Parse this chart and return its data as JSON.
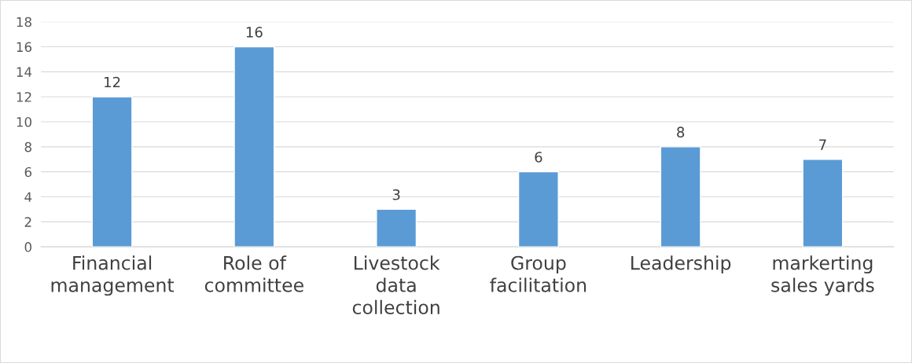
{
  "chart_data": {
    "type": "bar",
    "categories": [
      "Financial\nmanagement",
      "Role of\ncommittee",
      "Livestock\ndata\ncollection",
      "Group\nfacilitation",
      "Leadership",
      "markerting\nsales yards"
    ],
    "values": [
      12,
      16,
      3,
      6,
      8,
      7
    ],
    "color": "#5b9bd5",
    "ylim": [
      0,
      18
    ],
    "yticks": [
      0,
      2,
      4,
      6,
      8,
      10,
      12,
      14,
      16,
      18
    ],
    "grid": "y",
    "data_labels": true,
    "legend": false
  }
}
